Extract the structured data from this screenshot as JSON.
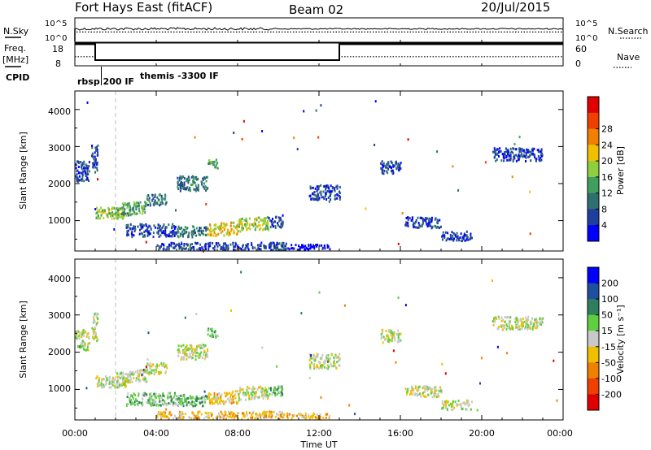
{
  "header": {
    "station": "Fort Hays East (fitACF)",
    "beam": "Beam 02",
    "date": "20/Jul/2015"
  },
  "strips": {
    "nsky_label": "N.Sky",
    "nsearch_label": "N.Search",
    "freq_label_1": "Freq.",
    "freq_label_2": "[MHz]",
    "nave_label": "Nave",
    "cpid_label": "CPID",
    "count_ticks": [
      "10^5",
      "10^0"
    ],
    "freq_ticks": [
      "18",
      "8"
    ],
    "nave_ticks": [
      "60",
      "0"
    ],
    "cpid_segments": [
      "rbsp 200 IF",
      "themis -3300 IF"
    ],
    "nsky_level": 0.55,
    "nsearch_level": 0.42,
    "freq_steps": [
      {
        "t_start": 0.0,
        "t_end": 1.0,
        "mhz": 17.5
      },
      {
        "t_start": 1.0,
        "t_end": 13.0,
        "mhz": 10.5
      },
      {
        "t_start": 13.0,
        "t_end": 24.0,
        "mhz": 17.5
      }
    ],
    "nave_steps": [
      {
        "t_start": 0.0,
        "t_end": 1.0,
        "nave": 24
      },
      {
        "t_start": 1.0,
        "t_end": 13.0,
        "nave": 15
      },
      {
        "t_start": 13.0,
        "t_end": 24.0,
        "nave": 24
      }
    ],
    "cpid_change_hour": 1.3
  },
  "axes": {
    "ylabel": "Slant Range [km]",
    "xlabel": "Time UT",
    "xticks": [
      "00:00",
      "04:00",
      "08:00",
      "12:00",
      "16:00",
      "20:00",
      "00:00"
    ],
    "yticks": [
      "1000",
      "2000",
      "3000",
      "4000"
    ]
  },
  "colorbars": {
    "power": {
      "label": "Power [dB]",
      "ticks": [
        "4",
        "8",
        "12",
        "16",
        "20",
        "24",
        "28"
      ],
      "colors": [
        "#0000ff",
        "#1f3f9f",
        "#2f6f6f",
        "#3f9f5f",
        "#8fcf3f",
        "#f0c000",
        "#f08000",
        "#f04000",
        "#e00000"
      ]
    },
    "velocity": {
      "label": "Velocity [m s⁻¹]",
      "ticks": [
        "200",
        "100",
        "50",
        "15",
        "-15",
        "-50",
        "-100",
        "-200"
      ],
      "colors": [
        "#0000ff",
        "#1f4f9f",
        "#2f7f5f",
        "#5fcf3f",
        "#c8c8c8",
        "#f0c000",
        "#f08000",
        "#f04000",
        "#e00000"
      ]
    }
  },
  "chart_data": [
    {
      "type": "heatmap",
      "name": "power",
      "x_range_hours": [
        0,
        24
      ],
      "ylim_km": [
        180,
        4500
      ],
      "dashed_marker_hour": 2.0,
      "regions": [
        {
          "t0": 0.0,
          "t1": 0.7,
          "r0": 2050,
          "r1": 2600,
          "slope": 0,
          "level": 1
        },
        {
          "t0": 0.8,
          "t1": 1.1,
          "r0": 2300,
          "r1": 3050,
          "slope": 0,
          "level": 1
        },
        {
          "t0": 1.0,
          "t1": 2.5,
          "r0": 1050,
          "r1": 1350,
          "slope": 0,
          "level": 4
        },
        {
          "t0": 2.0,
          "t1": 3.5,
          "r0": 1100,
          "r1": 1450,
          "slope": 60,
          "level": 3
        },
        {
          "t0": 3.5,
          "t1": 4.5,
          "r0": 1400,
          "r1": 1700,
          "slope": 20,
          "level": 2
        },
        {
          "t0": 2.5,
          "t1": 5.0,
          "r0": 560,
          "r1": 900,
          "slope": 0,
          "level": 1
        },
        {
          "t0": 5.0,
          "t1": 6.5,
          "r0": 550,
          "r1": 850,
          "slope": 0,
          "level": 2
        },
        {
          "t0": 6.5,
          "t1": 8.0,
          "r0": 560,
          "r1": 900,
          "slope": 40,
          "level": 5
        },
        {
          "t0": 8.0,
          "t1": 9.5,
          "r0": 700,
          "r1": 1050,
          "slope": 30,
          "level": 4
        },
        {
          "t0": 9.5,
          "t1": 10.2,
          "r0": 800,
          "r1": 1100,
          "slope": 0,
          "level": 1
        },
        {
          "t0": 4.0,
          "t1": 10.5,
          "r0": 200,
          "r1": 400,
          "slope": 0,
          "level": 1
        },
        {
          "t0": 10.5,
          "t1": 12.5,
          "r0": 200,
          "r1": 350,
          "slope": 0,
          "level": 0
        },
        {
          "t0": 11.5,
          "t1": 13.0,
          "r0": 1550,
          "r1": 1950,
          "slope": 0,
          "level": 1
        },
        {
          "t0": 6.5,
          "t1": 7.0,
          "r0": 2400,
          "r1": 2650,
          "slope": 0,
          "level": 3
        },
        {
          "t0": 5.0,
          "t1": 6.5,
          "r0": 1800,
          "r1": 2200,
          "slope": 0,
          "level": 2
        },
        {
          "t0": 16.2,
          "t1": 18.0,
          "r0": 820,
          "r1": 1100,
          "slope": -20,
          "level": 1
        },
        {
          "t0": 18.0,
          "t1": 19.5,
          "r0": 450,
          "r1": 700,
          "slope": 0,
          "level": 1
        },
        {
          "t0": 15.0,
          "t1": 16.0,
          "r0": 2250,
          "r1": 2600,
          "slope": 0,
          "level": 1
        },
        {
          "t0": 20.5,
          "t1": 23.0,
          "r0": 2600,
          "r1": 2950,
          "slope": 0,
          "level": 1
        }
      ]
    },
    {
      "type": "heatmap",
      "name": "velocity",
      "x_range_hours": [
        0,
        24
      ],
      "ylim_km": [
        180,
        4500
      ],
      "dashed_marker_hour": 2.0,
      "regions": [
        {
          "t0": 0.0,
          "t1": 0.7,
          "r0": 2050,
          "r1": 2600,
          "slope": 0,
          "level": 4
        },
        {
          "t0": 0.8,
          "t1": 1.1,
          "r0": 2300,
          "r1": 3050,
          "slope": 0,
          "level": 4
        },
        {
          "t0": 1.0,
          "t1": 2.5,
          "r0": 1050,
          "r1": 1350,
          "slope": 0,
          "level": 4
        },
        {
          "t0": 2.0,
          "t1": 3.5,
          "r0": 1100,
          "r1": 1450,
          "slope": 60,
          "level": 4
        },
        {
          "t0": 3.5,
          "t1": 4.5,
          "r0": 1400,
          "r1": 1700,
          "slope": 20,
          "level": 4
        },
        {
          "t0": 2.5,
          "t1": 5.0,
          "r0": 560,
          "r1": 900,
          "slope": 0,
          "level": 3
        },
        {
          "t0": 5.0,
          "t1": 6.5,
          "r0": 550,
          "r1": 850,
          "slope": 0,
          "level": 3
        },
        {
          "t0": 6.5,
          "t1": 8.0,
          "r0": 560,
          "r1": 900,
          "slope": 40,
          "level": 5
        },
        {
          "t0": 8.0,
          "t1": 9.5,
          "r0": 700,
          "r1": 1050,
          "slope": 30,
          "level": 4
        },
        {
          "t0": 9.5,
          "t1": 10.2,
          "r0": 800,
          "r1": 1100,
          "slope": 0,
          "level": 3
        },
        {
          "t0": 4.0,
          "t1": 10.5,
          "r0": 200,
          "r1": 400,
          "slope": 0,
          "level": 5
        },
        {
          "t0": 10.5,
          "t1": 12.5,
          "r0": 200,
          "r1": 350,
          "slope": 0,
          "level": 5
        },
        {
          "t0": 11.5,
          "t1": 13.0,
          "r0": 1550,
          "r1": 1950,
          "slope": 0,
          "level": 4
        },
        {
          "t0": 6.5,
          "t1": 7.0,
          "r0": 2400,
          "r1": 2650,
          "slope": 0,
          "level": 3
        },
        {
          "t0": 5.0,
          "t1": 6.5,
          "r0": 1800,
          "r1": 2200,
          "slope": 0,
          "level": 4
        },
        {
          "t0": 16.2,
          "t1": 18.0,
          "r0": 820,
          "r1": 1100,
          "slope": -20,
          "level": 4
        },
        {
          "t0": 18.0,
          "t1": 19.5,
          "r0": 450,
          "r1": 700,
          "slope": 0,
          "level": 4
        },
        {
          "t0": 15.0,
          "t1": 16.0,
          "r0": 2250,
          "r1": 2600,
          "slope": 0,
          "level": 4
        },
        {
          "t0": 20.5,
          "t1": 23.0,
          "r0": 2600,
          "r1": 2950,
          "slope": 0,
          "level": 4
        }
      ]
    }
  ]
}
